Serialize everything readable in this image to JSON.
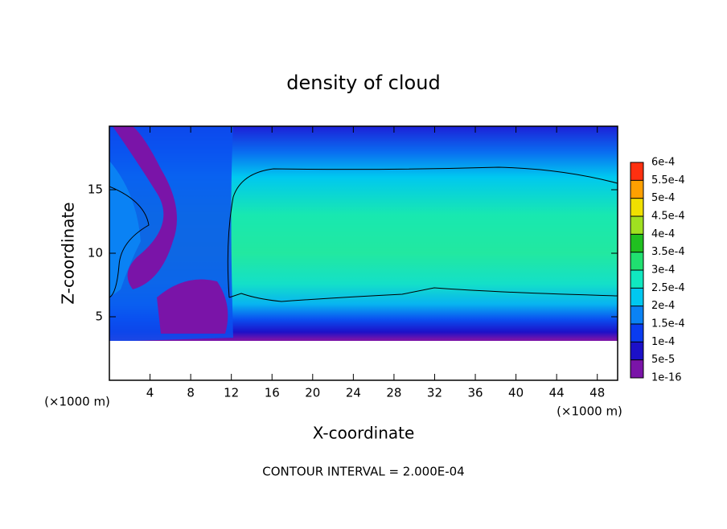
{
  "chart_data": {
    "type": "contour",
    "title": "density of cloud",
    "x_label": "X-coordinate",
    "y_label": "Z-coordinate",
    "x_unit": "(×1000 m)",
    "footer": "CONTOUR INTERVAL = 2.000E-04",
    "xlim": [
      0,
      50
    ],
    "ylim": [
      0,
      20
    ],
    "xticks": [
      4,
      8,
      12,
      16,
      20,
      24,
      28,
      32,
      36,
      40,
      44,
      48
    ],
    "yticks": [
      5,
      10,
      15
    ],
    "colorbar": {
      "levels": [
        {
          "value": 1e-16,
          "label": "1e-16"
        },
        {
          "value": 5e-05,
          "label": "5e-5"
        },
        {
          "value": 0.0001,
          "label": "1e-4"
        },
        {
          "value": 0.00015,
          "label": "1.5e-4"
        },
        {
          "value": 0.0002,
          "label": "2e-4"
        },
        {
          "value": 0.00025,
          "label": "2.5e-4"
        },
        {
          "value": 0.0003,
          "label": "3e-4"
        },
        {
          "value": 0.00035,
          "label": "3.5e-4"
        },
        {
          "value": 0.0004,
          "label": "4e-4"
        },
        {
          "value": 0.00045,
          "label": "4.5e-4"
        },
        {
          "value": 0.0005,
          "label": "5e-4"
        },
        {
          "value": 0.00055,
          "label": "5.5e-4"
        },
        {
          "value": 0.0006,
          "label": "6e-4"
        }
      ],
      "colors": [
        "#7a14a8",
        "#1c10c8",
        "#0a3cf0",
        "#0a82f4",
        "#00c8f0",
        "#10e8c0",
        "#20e070",
        "#20c020",
        "#a0e020",
        "#f0e000",
        "#ffa000",
        "#ff3010"
      ]
    }
  }
}
